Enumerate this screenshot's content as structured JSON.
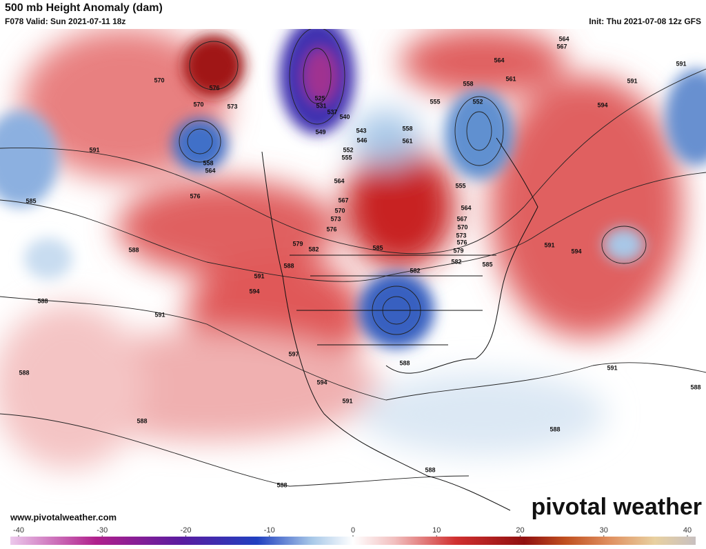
{
  "header": {
    "title": "500 mb Height Anomaly (dam)",
    "valid": "F078 Valid: Sun 2021-07-11 18z",
    "init": "Init: Thu 2021-07-08 12z GFS"
  },
  "contour_labels": [
    570,
    576,
    570,
    573,
    591,
    558,
    564,
    585,
    576,
    588,
    588,
    591,
    588,
    588,
    588,
    525,
    531,
    537,
    540,
    543,
    549,
    546,
    552,
    555,
    558,
    561,
    564,
    567,
    570,
    573,
    576,
    579,
    582,
    585,
    588,
    591,
    594,
    597,
    594,
    591,
    588,
    582,
    585,
    582,
    579,
    576,
    573,
    570,
    567,
    564,
    555,
    555,
    558,
    552,
    561,
    564,
    567,
    564,
    591,
    591,
    594,
    591,
    594,
    591,
    588,
    588,
    588
  ],
  "footer": {
    "website": "www.pivotalweather.com",
    "logo": "pivotal weather"
  },
  "colorbar": {
    "ticks": [
      -40,
      -30,
      -20,
      -10,
      0,
      10,
      20,
      30,
      40
    ]
  }
}
